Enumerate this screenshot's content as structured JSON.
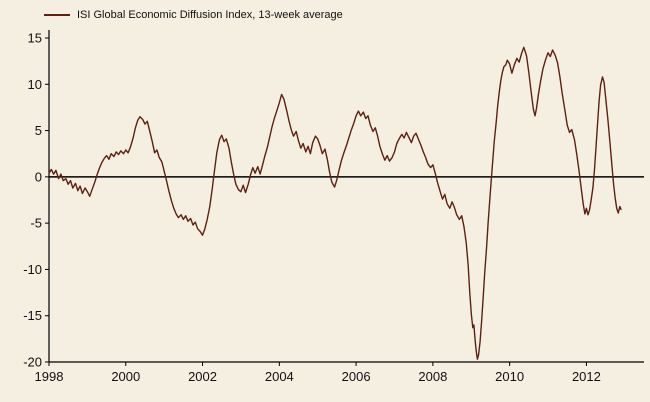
{
  "chart_data": {
    "type": "line",
    "title": "",
    "legend_position": "top-left",
    "grid": false,
    "xlabel": "",
    "ylabel": "",
    "xlim": [
      1998,
      2013.5
    ],
    "ylim": [
      -20,
      15
    ],
    "xticks": [
      1998,
      2000,
      2002,
      2004,
      2006,
      2008,
      2010,
      2012
    ],
    "yticks": [
      15,
      10,
      5,
      0,
      -5,
      -10,
      -15,
      -20
    ],
    "colors": {
      "line": "#5e2012",
      "axis": "#000000",
      "background": "#f4efe1",
      "text": "#111111"
    },
    "series": [
      {
        "name": "ISI Global Economic Diffusion Index, 13-week average",
        "points": [
          [
            1998.0,
            0.4
          ],
          [
            1998.06,
            0.8
          ],
          [
            1998.12,
            0.3
          ],
          [
            1998.18,
            0.7
          ],
          [
            1998.25,
            -0.2
          ],
          [
            1998.31,
            0.3
          ],
          [
            1998.37,
            -0.4
          ],
          [
            1998.44,
            -0.2
          ],
          [
            1998.5,
            -0.8
          ],
          [
            1998.56,
            -0.4
          ],
          [
            1998.62,
            -1.2
          ],
          [
            1998.69,
            -0.7
          ],
          [
            1998.75,
            -1.5
          ],
          [
            1998.81,
            -1.0
          ],
          [
            1998.87,
            -1.8
          ],
          [
            1998.94,
            -1.2
          ],
          [
            1999.0,
            -1.6
          ],
          [
            1999.06,
            -2.1
          ],
          [
            1999.12,
            -1.4
          ],
          [
            1999.19,
            -0.6
          ],
          [
            1999.25,
            0.2
          ],
          [
            1999.31,
            0.9
          ],
          [
            1999.37,
            1.5
          ],
          [
            1999.44,
            2.0
          ],
          [
            1999.5,
            2.3
          ],
          [
            1999.56,
            1.9
          ],
          [
            1999.62,
            2.5
          ],
          [
            1999.69,
            2.2
          ],
          [
            1999.75,
            2.7
          ],
          [
            1999.81,
            2.4
          ],
          [
            1999.87,
            2.8
          ],
          [
            1999.94,
            2.5
          ],
          [
            2000.0,
            2.9
          ],
          [
            2000.06,
            2.6
          ],
          [
            2000.12,
            3.2
          ],
          [
            2000.19,
            4.2
          ],
          [
            2000.25,
            5.3
          ],
          [
            2000.31,
            6.1
          ],
          [
            2000.37,
            6.5
          ],
          [
            2000.44,
            6.2
          ],
          [
            2000.5,
            5.7
          ],
          [
            2000.56,
            6.0
          ],
          [
            2000.62,
            5.0
          ],
          [
            2000.69,
            3.8
          ],
          [
            2000.75,
            2.6
          ],
          [
            2000.81,
            2.9
          ],
          [
            2000.87,
            2.1
          ],
          [
            2000.94,
            1.6
          ],
          [
            2001.0,
            0.6
          ],
          [
            2001.06,
            -0.4
          ],
          [
            2001.12,
            -1.5
          ],
          [
            2001.19,
            -2.6
          ],
          [
            2001.25,
            -3.4
          ],
          [
            2001.31,
            -4.0
          ],
          [
            2001.37,
            -4.4
          ],
          [
            2001.44,
            -4.1
          ],
          [
            2001.5,
            -4.6
          ],
          [
            2001.56,
            -4.2
          ],
          [
            2001.62,
            -4.8
          ],
          [
            2001.69,
            -4.5
          ],
          [
            2001.75,
            -5.2
          ],
          [
            2001.81,
            -4.9
          ],
          [
            2001.87,
            -5.6
          ],
          [
            2001.94,
            -5.9
          ],
          [
            2002.0,
            -6.3
          ],
          [
            2002.06,
            -5.6
          ],
          [
            2002.12,
            -4.6
          ],
          [
            2002.19,
            -3.2
          ],
          [
            2002.25,
            -1.4
          ],
          [
            2002.31,
            0.6
          ],
          [
            2002.37,
            2.6
          ],
          [
            2002.44,
            4.0
          ],
          [
            2002.5,
            4.5
          ],
          [
            2002.56,
            3.8
          ],
          [
            2002.62,
            4.1
          ],
          [
            2002.69,
            3.1
          ],
          [
            2002.75,
            1.6
          ],
          [
            2002.81,
            0.3
          ],
          [
            2002.87,
            -0.8
          ],
          [
            2002.94,
            -1.4
          ],
          [
            2003.0,
            -1.6
          ],
          [
            2003.06,
            -0.9
          ],
          [
            2003.12,
            -1.7
          ],
          [
            2003.19,
            -0.8
          ],
          [
            2003.25,
            0.2
          ],
          [
            2003.31,
            1.0
          ],
          [
            2003.37,
            0.4
          ],
          [
            2003.44,
            1.1
          ],
          [
            2003.5,
            0.3
          ],
          [
            2003.56,
            1.2
          ],
          [
            2003.62,
            2.2
          ],
          [
            2003.69,
            3.2
          ],
          [
            2003.75,
            4.3
          ],
          [
            2003.81,
            5.4
          ],
          [
            2003.87,
            6.3
          ],
          [
            2003.94,
            7.2
          ],
          [
            2004.0,
            8.0
          ],
          [
            2004.06,
            8.9
          ],
          [
            2004.12,
            8.4
          ],
          [
            2004.19,
            7.2
          ],
          [
            2004.25,
            6.1
          ],
          [
            2004.31,
            5.1
          ],
          [
            2004.37,
            4.4
          ],
          [
            2004.44,
            4.9
          ],
          [
            2004.5,
            3.9
          ],
          [
            2004.56,
            3.1
          ],
          [
            2004.62,
            3.6
          ],
          [
            2004.69,
            2.7
          ],
          [
            2004.75,
            3.3
          ],
          [
            2004.81,
            2.5
          ],
          [
            2004.87,
            3.7
          ],
          [
            2004.94,
            4.4
          ],
          [
            2005.0,
            4.1
          ],
          [
            2005.06,
            3.4
          ],
          [
            2005.12,
            2.5
          ],
          [
            2005.19,
            3.0
          ],
          [
            2005.25,
            1.9
          ],
          [
            2005.31,
            0.5
          ],
          [
            2005.37,
            -0.6
          ],
          [
            2005.44,
            -1.1
          ],
          [
            2005.5,
            -0.3
          ],
          [
            2005.56,
            0.8
          ],
          [
            2005.62,
            1.8
          ],
          [
            2005.69,
            2.7
          ],
          [
            2005.75,
            3.4
          ],
          [
            2005.81,
            4.2
          ],
          [
            2005.87,
            5.0
          ],
          [
            2005.94,
            5.8
          ],
          [
            2006.0,
            6.6
          ],
          [
            2006.06,
            7.1
          ],
          [
            2006.12,
            6.6
          ],
          [
            2006.19,
            7.0
          ],
          [
            2006.25,
            6.3
          ],
          [
            2006.31,
            6.6
          ],
          [
            2006.37,
            5.6
          ],
          [
            2006.44,
            4.9
          ],
          [
            2006.5,
            5.3
          ],
          [
            2006.56,
            4.4
          ],
          [
            2006.62,
            3.3
          ],
          [
            2006.69,
            2.4
          ],
          [
            2006.75,
            1.8
          ],
          [
            2006.81,
            2.3
          ],
          [
            2006.87,
            1.7
          ],
          [
            2006.94,
            2.1
          ],
          [
            2007.0,
            2.7
          ],
          [
            2007.06,
            3.6
          ],
          [
            2007.12,
            4.1
          ],
          [
            2007.19,
            4.6
          ],
          [
            2007.25,
            4.2
          ],
          [
            2007.31,
            4.8
          ],
          [
            2007.37,
            4.3
          ],
          [
            2007.44,
            3.7
          ],
          [
            2007.5,
            4.4
          ],
          [
            2007.56,
            4.7
          ],
          [
            2007.62,
            4.1
          ],
          [
            2007.69,
            3.4
          ],
          [
            2007.75,
            2.7
          ],
          [
            2007.81,
            2.1
          ],
          [
            2007.87,
            1.4
          ],
          [
            2007.94,
            1.0
          ],
          [
            2008.0,
            1.3
          ],
          [
            2008.06,
            0.4
          ],
          [
            2008.12,
            -0.6
          ],
          [
            2008.19,
            -1.6
          ],
          [
            2008.25,
            -2.4
          ],
          [
            2008.31,
            -1.9
          ],
          [
            2008.37,
            -2.9
          ],
          [
            2008.44,
            -3.4
          ],
          [
            2008.5,
            -2.7
          ],
          [
            2008.56,
            -3.3
          ],
          [
            2008.62,
            -4.1
          ],
          [
            2008.69,
            -4.6
          ],
          [
            2008.75,
            -4.2
          ],
          [
            2008.81,
            -5.4
          ],
          [
            2008.87,
            -7.2
          ],
          [
            2008.92,
            -9.6
          ],
          [
            2008.96,
            -12.4
          ],
          [
            2009.0,
            -14.8
          ],
          [
            2009.04,
            -16.3
          ],
          [
            2009.07,
            -16.0
          ],
          [
            2009.1,
            -17.6
          ],
          [
            2009.13,
            -18.8
          ],
          [
            2009.16,
            -19.7
          ],
          [
            2009.19,
            -19.2
          ],
          [
            2009.23,
            -17.8
          ],
          [
            2009.27,
            -15.6
          ],
          [
            2009.31,
            -13.0
          ],
          [
            2009.35,
            -10.4
          ],
          [
            2009.4,
            -7.6
          ],
          [
            2009.44,
            -5.0
          ],
          [
            2009.48,
            -2.6
          ],
          [
            2009.52,
            -0.4
          ],
          [
            2009.56,
            1.8
          ],
          [
            2009.6,
            3.9
          ],
          [
            2009.65,
            5.9
          ],
          [
            2009.69,
            7.7
          ],
          [
            2009.73,
            9.2
          ],
          [
            2009.77,
            10.4
          ],
          [
            2009.81,
            11.3
          ],
          [
            2009.85,
            11.9
          ],
          [
            2009.9,
            12.1
          ],
          [
            2009.94,
            12.6
          ],
          [
            2010.0,
            12.2
          ],
          [
            2010.06,
            11.2
          ],
          [
            2010.12,
            12.1
          ],
          [
            2010.19,
            12.8
          ],
          [
            2010.25,
            12.4
          ],
          [
            2010.31,
            13.3
          ],
          [
            2010.37,
            14.0
          ],
          [
            2010.44,
            13.1
          ],
          [
            2010.5,
            11.3
          ],
          [
            2010.56,
            9.2
          ],
          [
            2010.62,
            7.3
          ],
          [
            2010.66,
            6.6
          ],
          [
            2010.7,
            7.4
          ],
          [
            2010.75,
            8.9
          ],
          [
            2010.81,
            10.4
          ],
          [
            2010.87,
            11.7
          ],
          [
            2010.94,
            12.7
          ],
          [
            2011.0,
            13.4
          ],
          [
            2011.06,
            13.0
          ],
          [
            2011.12,
            13.7
          ],
          [
            2011.19,
            13.1
          ],
          [
            2011.25,
            12.3
          ],
          [
            2011.31,
            10.8
          ],
          [
            2011.37,
            9.0
          ],
          [
            2011.44,
            7.2
          ],
          [
            2011.5,
            5.6
          ],
          [
            2011.56,
            4.8
          ],
          [
            2011.62,
            5.1
          ],
          [
            2011.69,
            4.0
          ],
          [
            2011.75,
            2.4
          ],
          [
            2011.81,
            0.6
          ],
          [
            2011.87,
            -1.4
          ],
          [
            2011.92,
            -3.0
          ],
          [
            2011.96,
            -4.0
          ],
          [
            2012.0,
            -3.4
          ],
          [
            2012.04,
            -4.1
          ],
          [
            2012.08,
            -3.6
          ],
          [
            2012.12,
            -2.6
          ],
          [
            2012.17,
            -1.2
          ],
          [
            2012.21,
            0.8
          ],
          [
            2012.25,
            3.2
          ],
          [
            2012.29,
            5.8
          ],
          [
            2012.33,
            8.2
          ],
          [
            2012.37,
            9.9
          ],
          [
            2012.42,
            10.8
          ],
          [
            2012.46,
            10.2
          ],
          [
            2012.5,
            8.6
          ],
          [
            2012.56,
            6.2
          ],
          [
            2012.62,
            3.4
          ],
          [
            2012.67,
            1.0
          ],
          [
            2012.71,
            -0.9
          ],
          [
            2012.75,
            -2.3
          ],
          [
            2012.79,
            -3.4
          ],
          [
            2012.83,
            -3.9
          ],
          [
            2012.87,
            -3.2
          ],
          [
            2012.9,
            -3.5
          ]
        ]
      }
    ]
  }
}
